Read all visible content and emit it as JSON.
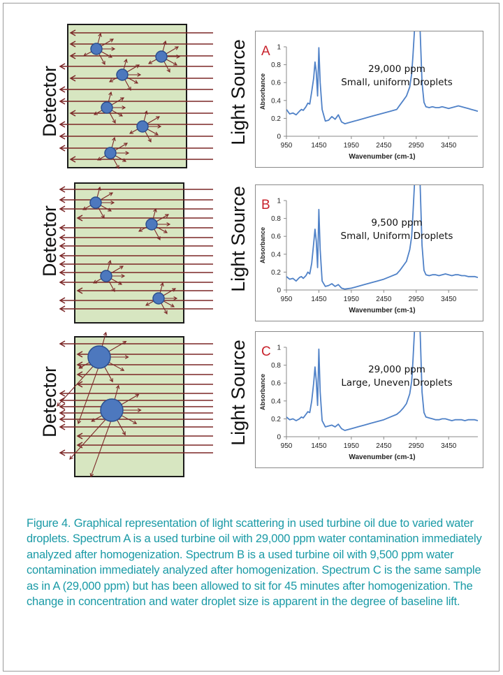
{
  "colors": {
    "cell_fill": "#d7e6c1",
    "arrow": "#7b2626",
    "droplet": "#4d78be",
    "droplet_edge": "#2b4f8e",
    "spectrum": "#4f81c7",
    "panel_letter": "#c8202a",
    "caption": "#1a9aa6"
  },
  "panels": [
    {
      "detector_label": "Detector",
      "source_label": "Light Source",
      "letter": "A",
      "concentration": "29,000 ppm",
      "droplet_note": "Small, uniform Droplets"
    },
    {
      "detector_label": "Detector",
      "source_label": "Light Source",
      "letter": "B",
      "concentration": "9,500 ppm",
      "droplet_note": "Small, Uniform Droplets"
    },
    {
      "detector_label": "Detector",
      "source_label": "Light Source",
      "letter": "C",
      "concentration": "29,000 ppm",
      "droplet_note": "Large, Uneven Droplets"
    }
  ],
  "chart_data": [
    {
      "type": "line",
      "letter": "A",
      "annotation": [
        "29,000 ppm",
        "Small, uniform Droplets"
      ],
      "xlabel": "Wavenumber (cm-1)",
      "ylabel": "Absorbance",
      "xlim": [
        950,
        3900
      ],
      "ylim": [
        0,
        1
      ],
      "xticks": [
        950,
        1450,
        1950,
        2450,
        2950,
        3450
      ],
      "yticks": [
        0,
        0.2,
        0.4,
        0.6,
        0.8,
        1
      ],
      "grid": false,
      "x": [
        950,
        1000,
        1050,
        1100,
        1150,
        1180,
        1210,
        1250,
        1280,
        1310,
        1340,
        1370,
        1390,
        1410,
        1430,
        1450,
        1470,
        1500,
        1550,
        1600,
        1650,
        1700,
        1750,
        1800,
        1850,
        1950,
        2050,
        2150,
        2250,
        2350,
        2450,
        2550,
        2650,
        2700,
        2750,
        2800,
        2850,
        2880,
        2900,
        2925,
        3010,
        3040,
        3070,
        3100,
        3150,
        3200,
        3250,
        3300,
        3350,
        3400,
        3450,
        3500,
        3550,
        3600,
        3650,
        3700,
        3750,
        3800,
        3850,
        3900
      ],
      "y": [
        0.3,
        0.25,
        0.26,
        0.24,
        0.28,
        0.3,
        0.29,
        0.33,
        0.37,
        0.36,
        0.5,
        0.65,
        0.83,
        0.72,
        0.45,
        0.99,
        0.6,
        0.3,
        0.17,
        0.18,
        0.22,
        0.19,
        0.24,
        0.16,
        0.14,
        0.16,
        0.18,
        0.2,
        0.22,
        0.24,
        0.26,
        0.28,
        0.3,
        0.35,
        0.4,
        0.45,
        0.55,
        0.7,
        0.9,
        1.2,
        1.2,
        0.6,
        0.38,
        0.33,
        0.32,
        0.33,
        0.32,
        0.32,
        0.33,
        0.32,
        0.31,
        0.32,
        0.33,
        0.34,
        0.33,
        0.32,
        0.31,
        0.3,
        0.29,
        0.28
      ]
    },
    {
      "type": "line",
      "letter": "B",
      "annotation": [
        "9,500 ppm",
        "Small, Uniform Droplets"
      ],
      "xlabel": "Wavenumber (cm-1)",
      "ylabel": "Absorbance",
      "xlim": [
        950,
        3900
      ],
      "ylim": [
        0,
        1
      ],
      "xticks": [
        950,
        1450,
        1950,
        2450,
        2950,
        3450
      ],
      "yticks": [
        0,
        0.2,
        0.4,
        0.6,
        0.8,
        1
      ],
      "grid": false,
      "x": [
        950,
        1000,
        1050,
        1100,
        1150,
        1180,
        1210,
        1250,
        1280,
        1310,
        1340,
        1370,
        1390,
        1410,
        1430,
        1450,
        1470,
        1500,
        1550,
        1600,
        1650,
        1700,
        1750,
        1800,
        1850,
        1950,
        2050,
        2150,
        2250,
        2350,
        2450,
        2550,
        2650,
        2700,
        2750,
        2800,
        2850,
        2880,
        2900,
        2925,
        3010,
        3040,
        3070,
        3100,
        3150,
        3200,
        3250,
        3300,
        3350,
        3400,
        3450,
        3500,
        3550,
        3600,
        3650,
        3700,
        3750,
        3800,
        3850,
        3900
      ],
      "y": [
        0.15,
        0.12,
        0.13,
        0.1,
        0.14,
        0.15,
        0.13,
        0.16,
        0.2,
        0.18,
        0.3,
        0.52,
        0.68,
        0.55,
        0.25,
        0.9,
        0.45,
        0.1,
        0.04,
        0.05,
        0.07,
        0.04,
        0.06,
        0.02,
        0.01,
        0.02,
        0.04,
        0.06,
        0.08,
        0.1,
        0.12,
        0.15,
        0.18,
        0.22,
        0.27,
        0.32,
        0.45,
        0.6,
        0.85,
        1.2,
        1.2,
        0.5,
        0.22,
        0.17,
        0.16,
        0.17,
        0.17,
        0.16,
        0.17,
        0.18,
        0.17,
        0.16,
        0.17,
        0.17,
        0.16,
        0.16,
        0.15,
        0.15,
        0.15,
        0.14
      ]
    },
    {
      "type": "line",
      "letter": "C",
      "annotation": [
        "29,000 ppm",
        "Large, Uneven Droplets"
      ],
      "xlabel": "Wavenumber (cm-1)",
      "ylabel": "Absorbance",
      "xlim": [
        950,
        3900
      ],
      "ylim": [
        0,
        1
      ],
      "xticks": [
        950,
        1450,
        1950,
        2450,
        2950,
        3450
      ],
      "yticks": [
        0,
        0.2,
        0.4,
        0.6,
        0.8,
        1
      ],
      "grid": false,
      "x": [
        950,
        1000,
        1050,
        1100,
        1150,
        1180,
        1210,
        1250,
        1280,
        1310,
        1340,
        1370,
        1390,
        1410,
        1430,
        1450,
        1470,
        1500,
        1550,
        1600,
        1650,
        1700,
        1750,
        1800,
        1850,
        1950,
        2050,
        2150,
        2250,
        2350,
        2450,
        2550,
        2650,
        2700,
        2750,
        2800,
        2850,
        2880,
        2900,
        2925,
        3010,
        3040,
        3070,
        3100,
        3150,
        3200,
        3250,
        3300,
        3350,
        3400,
        3450,
        3500,
        3550,
        3600,
        3650,
        3700,
        3750,
        3800,
        3850,
        3900
      ],
      "y": [
        0.22,
        0.19,
        0.2,
        0.18,
        0.2,
        0.22,
        0.21,
        0.25,
        0.28,
        0.27,
        0.4,
        0.6,
        0.78,
        0.63,
        0.35,
        0.98,
        0.5,
        0.18,
        0.11,
        0.12,
        0.13,
        0.11,
        0.14,
        0.09,
        0.07,
        0.09,
        0.11,
        0.13,
        0.15,
        0.17,
        0.19,
        0.22,
        0.25,
        0.28,
        0.32,
        0.37,
        0.48,
        0.62,
        0.85,
        1.2,
        1.2,
        0.5,
        0.27,
        0.22,
        0.21,
        0.2,
        0.19,
        0.19,
        0.2,
        0.2,
        0.19,
        0.18,
        0.19,
        0.19,
        0.19,
        0.18,
        0.19,
        0.19,
        0.19,
        0.18
      ]
    }
  ],
  "caption": "Figure 4. Graphical representation of light scattering in used turbine oil due to varied water droplets. Spectrum  A is a used turbine oil with 29,000 ppm water contamination immediately analyzed after homogenization. Spectrum B is a used turbine oil with 9,500 ppm water contamination immediately analyzed after homogenization. Spectrum C is the same sample as in A (29,000 ppm) but has been allowed to sit for 45 minutes after homogenization. The change in concentration and water droplet size is apparent in the degree of baseline lift."
}
